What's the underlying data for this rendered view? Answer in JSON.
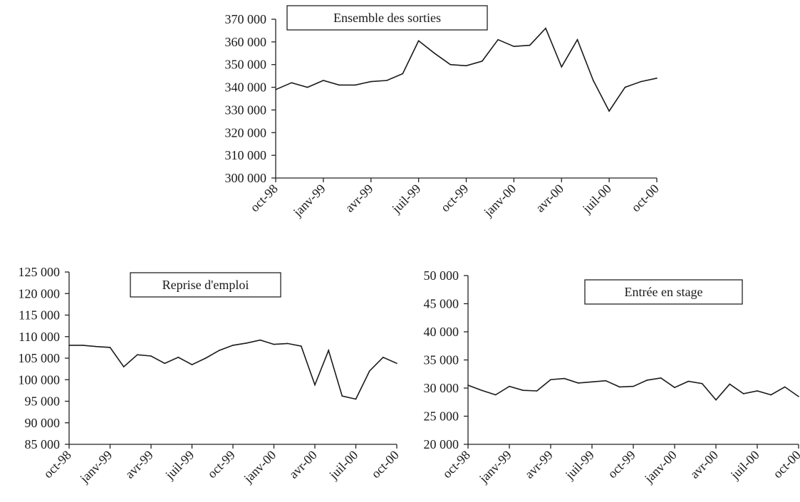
{
  "chart_data": [
    {
      "type": "line",
      "title": "Ensemble des sorties",
      "ylim": [
        300000,
        370000
      ],
      "y_ticks": [
        "300 000",
        "310 000",
        "320 000",
        "330 000",
        "340 000",
        "350 000",
        "360 000",
        "370 000"
      ],
      "x_ticks": [
        "oct-98",
        "janv-99",
        "avr-99",
        "juil-99",
        "oct-99",
        "janv-00",
        "avr-00",
        "juil-00",
        "oct-00"
      ],
      "x": [
        "oct-98",
        "nov-98",
        "déc-98",
        "janv-99",
        "févr-99",
        "mars-99",
        "avr-99",
        "mai-99",
        "juin-99",
        "juil-99",
        "août-99",
        "sept-99",
        "oct-99",
        "nov-99",
        "déc-99",
        "janv-00",
        "févr-00",
        "mars-00",
        "avr-00",
        "mai-00",
        "juin-00",
        "juil-00",
        "août-00",
        "sept-00",
        "oct-00"
      ],
      "series": [
        {
          "values": [
            339000,
            342000,
            340000,
            343000,
            341000,
            341000,
            342500,
            343000,
            346000,
            360500,
            355000,
            350000,
            349500,
            351500,
            361000,
            358000,
            358500,
            366000,
            349000,
            361000,
            343000,
            329500,
            340000,
            342500,
            344000
          ]
        }
      ],
      "grid": false,
      "legend": "none"
    },
    {
      "type": "line",
      "title": "Reprise d'emploi",
      "ylim": [
        85000,
        125000
      ],
      "y_ticks": [
        "85 000",
        "90 000",
        "95 000",
        "100 000",
        "105 000",
        "110 000",
        "115 000",
        "120 000",
        "125 000"
      ],
      "x_ticks": [
        "oct-98",
        "janv-99",
        "avr-99",
        "juil-99",
        "oct-99",
        "janv-00",
        "avr-00",
        "juil-00",
        "oct-00"
      ],
      "x": [
        "oct-98",
        "nov-98",
        "déc-98",
        "janv-99",
        "févr-99",
        "mars-99",
        "avr-99",
        "mai-99",
        "juin-99",
        "juil-99",
        "août-99",
        "sept-99",
        "oct-99",
        "nov-99",
        "déc-99",
        "janv-00",
        "févr-00",
        "mars-00",
        "avr-00",
        "mai-00",
        "juin-00",
        "juil-00",
        "août-00",
        "sept-00",
        "oct-00"
      ],
      "series": [
        {
          "values": [
            108000,
            108000,
            107700,
            107500,
            103000,
            105800,
            105500,
            103800,
            105200,
            103500,
            105000,
            106800,
            108000,
            108500,
            109200,
            108200,
            108400,
            107800,
            98800,
            106800,
            96200,
            95500,
            102000,
            105200,
            103800
          ]
        }
      ],
      "grid": false,
      "legend": "none"
    },
    {
      "type": "line",
      "title": "Entrée en stage",
      "ylim": [
        20000,
        50000
      ],
      "y_ticks": [
        "20 000",
        "25 000",
        "30 000",
        "35 000",
        "40 000",
        "45 000",
        "50 000"
      ],
      "x_ticks": [
        "oct-98",
        "janv-99",
        "avr-99",
        "juil-99",
        "oct-99",
        "janv-00",
        "avr-00",
        "juil-00",
        "oct-00"
      ],
      "x": [
        "oct-98",
        "nov-98",
        "déc-98",
        "janv-99",
        "févr-99",
        "mars-99",
        "avr-99",
        "mai-99",
        "juin-99",
        "juil-99",
        "août-99",
        "sept-99",
        "oct-99",
        "nov-99",
        "déc-99",
        "janv-00",
        "févr-00",
        "mars-00",
        "avr-00",
        "mai-00",
        "juin-00",
        "juil-00",
        "août-00",
        "sept-00",
        "oct-00"
      ],
      "series": [
        {
          "values": [
            30500,
            29600,
            28800,
            30300,
            29600,
            29500,
            31500,
            31700,
            30900,
            31100,
            31300,
            30200,
            30300,
            31400,
            31800,
            30100,
            31200,
            30800,
            27900,
            30700,
            29000,
            29500,
            28800,
            30200,
            28500
          ]
        }
      ],
      "grid": false,
      "legend": "none"
    }
  ]
}
